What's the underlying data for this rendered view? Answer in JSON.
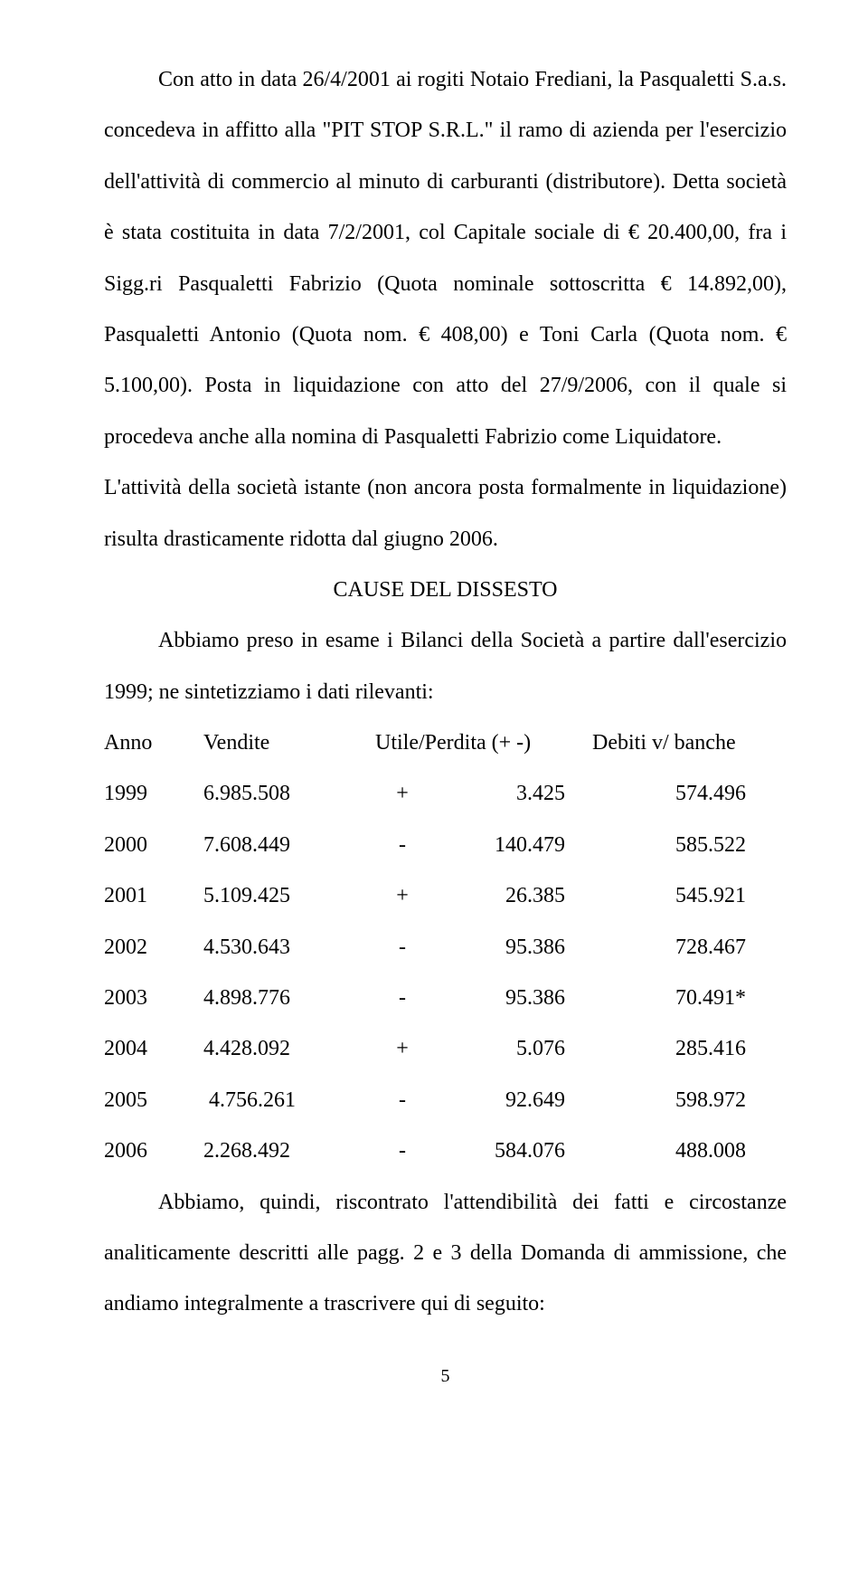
{
  "para1": "Con atto in data 26/4/2001 ai rogiti Notaio Frediani, la Pasqualetti S.a.s. concedeva in affitto alla \"PIT STOP S.R.L.\" il ramo di azienda per l'esercizio dell'attività di commercio al minuto di carburanti (distributore). Detta società è stata costituita in data 7/2/2001, col Capitale sociale di € 20.400,00, fra i Sigg.ri Pasqualetti Fabrizio (Quota nominale sottoscritta € 14.892,00), Pasqualetti Antonio (Quota nom. € 408,00) e Toni Carla (Quota nom. € 5.100,00). Posta in liquidazione con atto del 27/9/2006, con il quale si procedeva anche alla nomina di Pasqualetti Fabrizio come Liquidatore.",
  "para2": "L'attività della società istante (non ancora posta formalmente in liquidazione) risulta drasticamente ridotta dal giugno 2006.",
  "heading": "CAUSE DEL DISSESTO",
  "para3": "Abbiamo preso in esame i Bilanci della Società a partire dall'esercizio 1999; ne sintetizziamo i dati rilevanti:",
  "table": {
    "headers": {
      "anno": "Anno",
      "vendite": "Vendite",
      "util": "Utile/Perdita (+ -)",
      "debiti": "Debiti v/ banche"
    },
    "rows": [
      {
        "anno": "1999",
        "vendite": "6.985.508",
        "sign": "+",
        "util": "3.425",
        "debiti": "574.496"
      },
      {
        "anno": "2000",
        "vendite": "7.608.449",
        "sign": "-",
        "util": "140.479",
        "debiti": "585.522"
      },
      {
        "anno": "2001",
        "vendite": "5.109.425",
        "sign": "+",
        "util": "26.385",
        "debiti": "545.921"
      },
      {
        "anno": "2002",
        "vendite": "4.530.643",
        "sign": "-",
        "util": "95.386",
        "debiti": "728.467"
      },
      {
        "anno": "2003",
        "vendite": "4.898.776",
        "sign": "-",
        "util": "95.386",
        "debiti": "70.491*"
      },
      {
        "anno": "2004",
        "vendite": "4.428.092",
        "sign": "+",
        "util": "5.076",
        "debiti": "285.416"
      },
      {
        "anno": "2005",
        "vendite": " 4.756.261",
        "sign": "-",
        "util": "92.649",
        "debiti": "598.972"
      },
      {
        "anno": "2006",
        "vendite": "2.268.492",
        "sign": "-",
        "util": "584.076",
        "debiti": "488.008"
      }
    ]
  },
  "para4": "Abbiamo, quindi, riscontrato l'attendibilità dei fatti e circostanze analiticamente descritti alle pagg. 2 e 3 della Domanda di ammissione, che andiamo integralmente a trascrivere qui di seguito:",
  "pagenum": "5"
}
